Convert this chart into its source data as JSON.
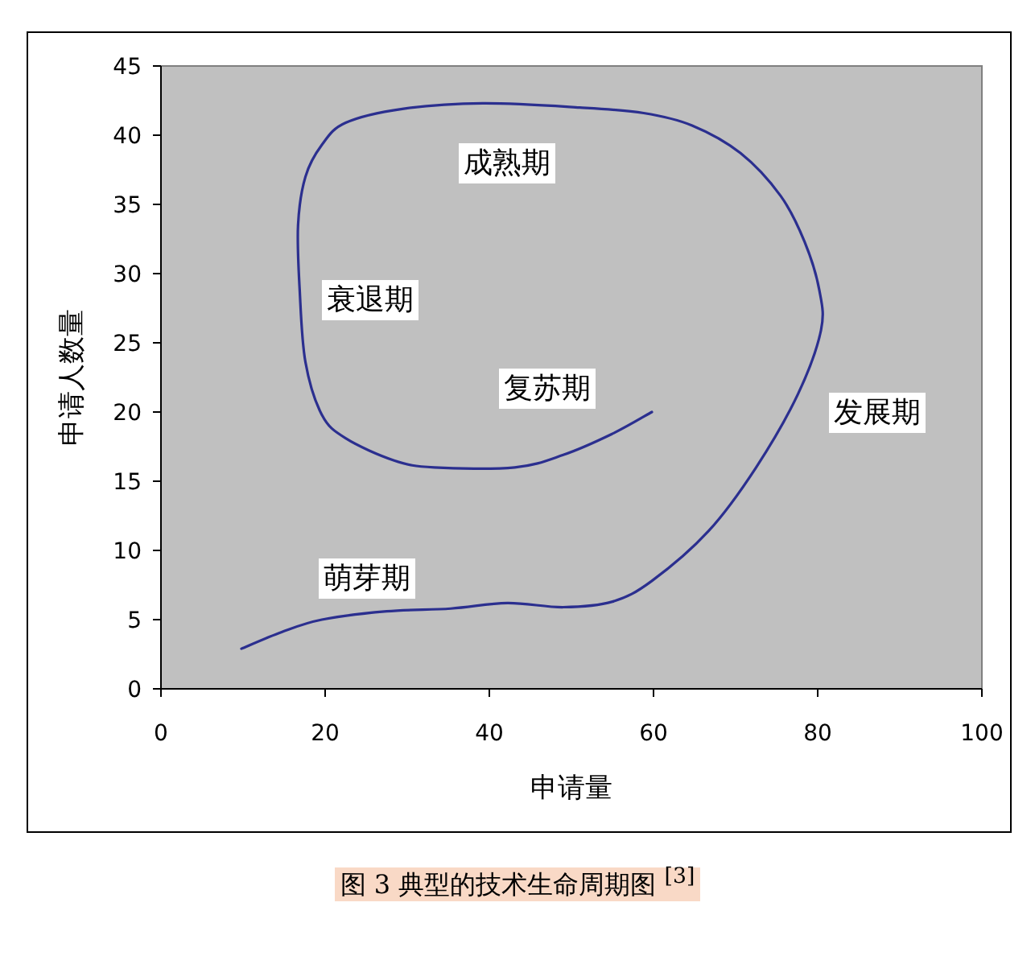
{
  "chart_data": {
    "type": "line",
    "xlabel": "申请量",
    "ylabel": "申请人数量",
    "xlim": [
      0,
      100
    ],
    "xticks": [
      0,
      20,
      40,
      60,
      80,
      100
    ],
    "ylim": [
      0,
      45
    ],
    "yticks": [
      0,
      5,
      10,
      15,
      20,
      25,
      30,
      35,
      40,
      45
    ],
    "grid": false,
    "marker": "none",
    "line_style": "solid",
    "series": [
      {
        "color": "#2b2f8f",
        "type": "line",
        "x": [
          9.8,
          14.7,
          19.6,
          27.5,
          35.3,
          42.2,
          49,
          55,
          59.8,
          66.7,
          72.5,
          77.6,
          80.4,
          80.2,
          78.4,
          75.5,
          70.6,
          64.7,
          58.8,
          51,
          39.2,
          29.4,
          22.5,
          19.6,
          17.6,
          16.7,
          16.9,
          17.6,
          19.6,
          22.5,
          28.4,
          33.3,
          43.1,
          49,
          54.9,
          59.8
        ],
        "values": [
          2.9,
          4.1,
          5.0,
          5.6,
          5.8,
          6.2,
          5.9,
          6.3,
          7.8,
          11.4,
          16,
          21.3,
          25.9,
          28.8,
          32.3,
          35.6,
          38.7,
          40.7,
          41.6,
          42,
          42.3,
          41.9,
          40.9,
          39.3,
          37,
          33.5,
          28.8,
          23.6,
          19.8,
          18.1,
          16.5,
          16,
          16,
          16.9,
          18.4,
          20
        ]
      }
    ],
    "annotations": [
      "成熟期",
      "衰退期",
      "复苏期",
      "发展期",
      "萌芽期",
      "图 3 典型的技术生命周期图 $^{[3]}$"
    ]
  }
}
